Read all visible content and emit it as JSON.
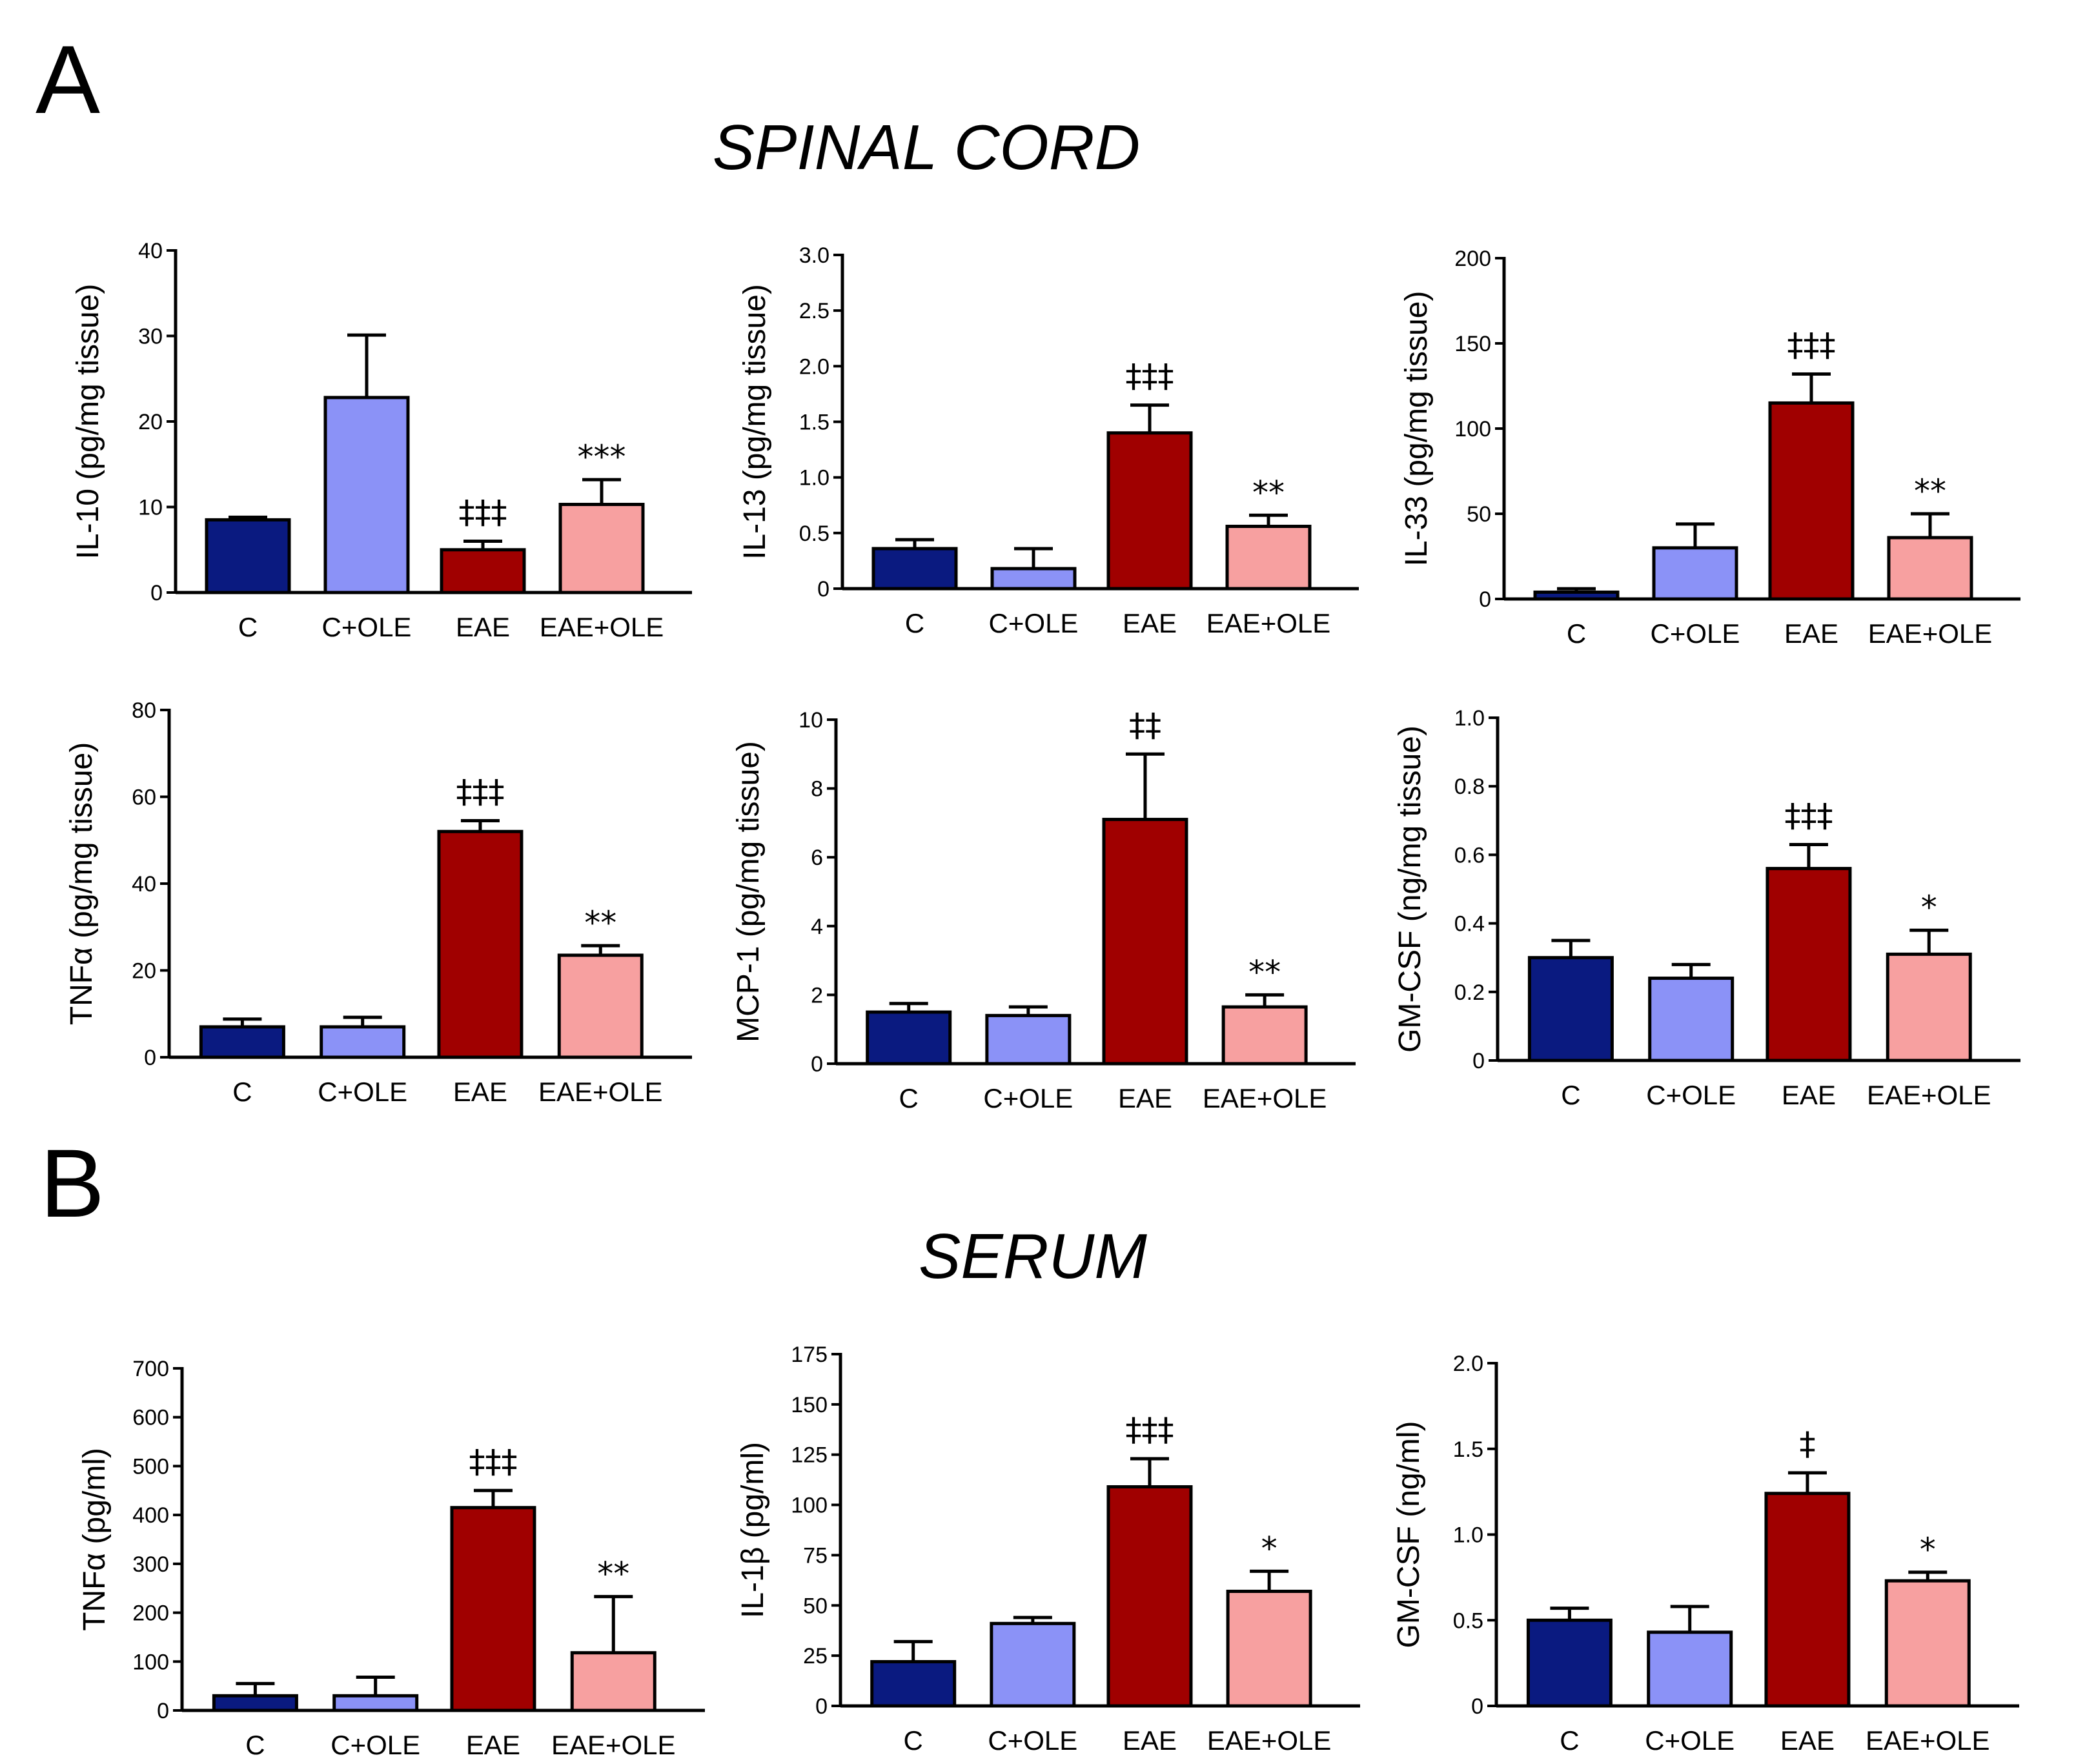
{
  "figure": {
    "panel_a_label": "A",
    "panel_b_label": "B",
    "section_a_title": "SPINAL CORD",
    "section_b_title": "SERUM"
  },
  "colors": {
    "C": "#0a1a80",
    "C+OLE": "#8b92f7",
    "EAE": "#a00000",
    "EAE+OLE": "#f7a0a0"
  },
  "chart_data": [
    {
      "type": "bar",
      "section": "SPINAL CORD",
      "categories": [
        "C",
        "C+OLE",
        "EAE",
        "EAE+OLE"
      ],
      "values": [
        8.5,
        22.8,
        5.0,
        10.3
      ],
      "errors": [
        0.3,
        7.3,
        1.0,
        2.9
      ],
      "significance": [
        "",
        "",
        "‡‡‡",
        "***"
      ],
      "ylabel": "IL-10 (pg/mg tissue)",
      "ylim": [
        0,
        40
      ],
      "yticks": [
        0,
        10,
        20,
        30,
        40
      ],
      "ytick_labels": [
        "0",
        "10",
        "20",
        "30",
        "40"
      ]
    },
    {
      "type": "bar",
      "section": "SPINAL CORD",
      "categories": [
        "C",
        "C+OLE",
        "EAE",
        "EAE+OLE"
      ],
      "values": [
        0.36,
        0.18,
        1.4,
        0.56
      ],
      "errors": [
        0.08,
        0.18,
        0.25,
        0.1
      ],
      "significance": [
        "",
        "",
        "‡‡‡",
        "**"
      ],
      "ylabel": "IL-13 (pg/mg tissue)",
      "ylim": [
        0,
        3.0
      ],
      "yticks": [
        0,
        0.5,
        1.0,
        1.5,
        2.0,
        2.5,
        3.0
      ],
      "ytick_labels": [
        "0",
        "0.5",
        "1.0",
        "1.5",
        "2.0",
        "2.5",
        "3.0"
      ]
    },
    {
      "type": "bar",
      "section": "SPINAL CORD",
      "categories": [
        "C",
        "C+OLE",
        "EAE",
        "EAE+OLE"
      ],
      "values": [
        4,
        30,
        115,
        36
      ],
      "errors": [
        2,
        14,
        17,
        14
      ],
      "significance": [
        "",
        "",
        "‡‡‡",
        "**"
      ],
      "ylabel": "IL-33 (pg/mg tissue)",
      "ylim": [
        0,
        200
      ],
      "yticks": [
        0,
        50,
        100,
        150,
        200
      ],
      "ytick_labels": [
        "0",
        "50",
        "100",
        "150",
        "200"
      ]
    },
    {
      "type": "bar",
      "section": "SPINAL CORD",
      "categories": [
        "C",
        "C+OLE",
        "EAE",
        "EAE+OLE"
      ],
      "values": [
        7,
        7,
        52,
        23.5
      ],
      "errors": [
        1.8,
        2.2,
        2.5,
        2.2
      ],
      "significance": [
        "",
        "",
        "‡‡‡",
        "**"
      ],
      "ylabel": "TNFα (pg/mg tissue)",
      "ylim": [
        0,
        80
      ],
      "yticks": [
        0,
        20,
        40,
        60,
        80
      ],
      "ytick_labels": [
        "0",
        "20",
        "40",
        "60",
        "80"
      ]
    },
    {
      "type": "bar",
      "section": "SPINAL CORD",
      "categories": [
        "C",
        "C+OLE",
        "EAE",
        "EAE+OLE"
      ],
      "values": [
        1.5,
        1.4,
        7.1,
        1.65
      ],
      "errors": [
        0.25,
        0.25,
        1.9,
        0.35
      ],
      "significance": [
        "",
        "",
        "‡‡",
        "**"
      ],
      "ylabel": "MCP-1 (pg/mg tissue)",
      "ylim": [
        0,
        10
      ],
      "yticks": [
        0,
        2,
        4,
        6,
        8,
        10
      ],
      "ytick_labels": [
        "0",
        "2",
        "4",
        "6",
        "8",
        "10"
      ]
    },
    {
      "type": "bar",
      "section": "SPINAL CORD",
      "categories": [
        "C",
        "C+OLE",
        "EAE",
        "EAE+OLE"
      ],
      "values": [
        0.3,
        0.24,
        0.56,
        0.31
      ],
      "errors": [
        0.05,
        0.04,
        0.07,
        0.07
      ],
      "significance": [
        "",
        "",
        "‡‡‡",
        "*"
      ],
      "ylabel": "GM-CSF (ng/mg tissue)",
      "ylim": [
        0,
        1.0
      ],
      "yticks": [
        0,
        0.2,
        0.4,
        0.6,
        0.8,
        1.0
      ],
      "ytick_labels": [
        "0",
        "0.2",
        "0.4",
        "0.6",
        "0.8",
        "1.0"
      ]
    },
    {
      "type": "bar",
      "section": "SERUM",
      "categories": [
        "C",
        "C+OLE",
        "EAE",
        "EAE+OLE"
      ],
      "values": [
        30,
        30,
        415,
        118
      ],
      "errors": [
        25,
        38,
        35,
        115
      ],
      "significance": [
        "",
        "",
        "‡‡‡",
        "**"
      ],
      "ylabel": "TNFα (pg/ml)",
      "ylim": [
        0,
        700
      ],
      "yticks": [
        0,
        100,
        200,
        300,
        400,
        500,
        600,
        700
      ],
      "ytick_labels": [
        "0",
        "100",
        "200",
        "300",
        "400",
        "500",
        "600",
        "700"
      ]
    },
    {
      "type": "bar",
      "section": "SERUM",
      "categories": [
        "C",
        "C+OLE",
        "EAE",
        "EAE+OLE"
      ],
      "values": [
        22,
        41,
        109,
        57
      ],
      "errors": [
        10,
        3,
        14,
        10
      ],
      "significance": [
        "",
        "",
        "‡‡‡",
        "*"
      ],
      "ylabel": "IL-1β (pg/ml)",
      "ylim": [
        0,
        175
      ],
      "yticks": [
        0,
        25,
        50,
        75,
        100,
        125,
        150,
        175
      ],
      "ytick_labels": [
        "0",
        "25",
        "50",
        "75",
        "100",
        "125",
        "150",
        "175"
      ]
    },
    {
      "type": "bar",
      "section": "SERUM",
      "categories": [
        "C",
        "C+OLE",
        "EAE",
        "EAE+OLE"
      ],
      "values": [
        0.5,
        0.43,
        1.24,
        0.73
      ],
      "errors": [
        0.07,
        0.15,
        0.12,
        0.05
      ],
      "significance": [
        "",
        "",
        "‡",
        "*"
      ],
      "ylabel": "GM-CSF (ng/ml)",
      "ylim": [
        0,
        2.0
      ],
      "yticks": [
        0,
        0.5,
        1.0,
        1.5,
        2.0
      ],
      "ytick_labels": [
        "0",
        "0.5",
        "1.0",
        "1.5",
        "2.0"
      ]
    }
  ]
}
